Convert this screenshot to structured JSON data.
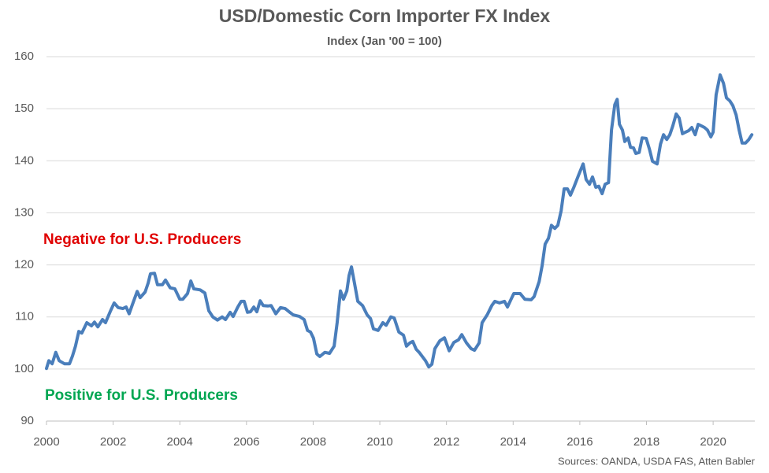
{
  "chart_data": {
    "type": "line",
    "title": "USD/Domestic Corn Importer FX Index",
    "subtitle": "Index (Jan '00 = 100)",
    "annotations": [
      "Negative for U.S. Producers",
      "Positive for U.S. Producers"
    ],
    "source": "Sources: OANDA, USDA FAS, Atten Babler",
    "color": "#4a7ebb",
    "grid": true,
    "xlim": [
      2000,
      2021.25
    ],
    "xticks": [
      2000,
      2002,
      2004,
      2006,
      2008,
      2010,
      2012,
      2014,
      2016,
      2018,
      2020
    ],
    "ylim": [
      90,
      160
    ],
    "yticks": [
      90,
      100,
      110,
      120,
      130,
      140,
      150,
      160
    ],
    "x": [
      2000.0,
      2000.07,
      2000.17,
      2000.28,
      2000.38,
      2000.54,
      2000.69,
      2000.78,
      2000.87,
      2000.97,
      2001.06,
      2001.21,
      2001.35,
      2001.44,
      2001.54,
      2001.68,
      2001.77,
      2001.91,
      2002.03,
      2002.15,
      2002.29,
      2002.39,
      2002.48,
      2002.58,
      2002.72,
      2002.81,
      2002.96,
      2003.05,
      2003.12,
      2003.24,
      2003.33,
      2003.48,
      2003.57,
      2003.71,
      2003.85,
      2004.0,
      2004.09,
      2004.23,
      2004.33,
      2004.42,
      2004.61,
      2004.75,
      2004.87,
      2004.99,
      2005.13,
      2005.27,
      2005.37,
      2005.51,
      2005.6,
      2005.74,
      2005.84,
      2005.93,
      2006.03,
      2006.12,
      2006.22,
      2006.31,
      2006.41,
      2006.5,
      2006.64,
      2006.74,
      2006.88,
      2007.02,
      2007.16,
      2007.3,
      2007.4,
      2007.59,
      2007.73,
      2007.83,
      2007.92,
      2008.01,
      2008.11,
      2008.2,
      2008.35,
      2008.49,
      2008.63,
      2008.72,
      2008.82,
      2008.91,
      2009.01,
      2009.08,
      2009.15,
      2009.24,
      2009.34,
      2009.48,
      2009.62,
      2009.72,
      2009.81,
      2009.95,
      2010.09,
      2010.19,
      2010.33,
      2010.43,
      2010.57,
      2010.71,
      2010.8,
      2010.9,
      2010.99,
      2011.09,
      2011.18,
      2011.37,
      2011.47,
      2011.56,
      2011.65,
      2011.8,
      2011.94,
      2012.08,
      2012.22,
      2012.36,
      2012.46,
      2012.6,
      2012.74,
      2012.84,
      2012.98,
      2013.07,
      2013.22,
      2013.36,
      2013.45,
      2013.59,
      2013.74,
      2013.83,
      2013.93,
      2014.02,
      2014.21,
      2014.35,
      2014.54,
      2014.63,
      2014.78,
      2014.87,
      2014.96,
      2015.06,
      2015.15,
      2015.25,
      2015.34,
      2015.44,
      2015.53,
      2015.63,
      2015.72,
      2015.82,
      2015.96,
      2016.1,
      2016.19,
      2016.29,
      2016.38,
      2016.48,
      2016.57,
      2016.67,
      2016.76,
      2016.86,
      2016.95,
      2017.05,
      2017.12,
      2017.19,
      2017.28,
      2017.35,
      2017.45,
      2017.52,
      2017.61,
      2017.68,
      2017.78,
      2017.87,
      2017.99,
      2018.09,
      2018.18,
      2018.32,
      2018.42,
      2018.51,
      2018.61,
      2018.7,
      2018.79,
      2018.89,
      2018.98,
      2019.08,
      2019.17,
      2019.27,
      2019.36,
      2019.46,
      2019.55,
      2019.65,
      2019.74,
      2019.83,
      2019.93,
      2020.0,
      2020.09,
      2020.21,
      2020.31,
      2020.4,
      2020.5,
      2020.59,
      2020.69,
      2020.78,
      2020.87,
      2020.97,
      2021.06,
      2021.16
    ],
    "values": [
      100.1,
      101.6,
      101.0,
      103.2,
      101.6,
      101.0,
      101.0,
      102.5,
      104.4,
      107.2,
      106.9,
      108.9,
      108.3,
      109.0,
      108.1,
      109.5,
      108.9,
      111.0,
      112.7,
      111.8,
      111.6,
      111.9,
      110.6,
      112.4,
      114.9,
      113.7,
      114.8,
      116.5,
      118.3,
      118.4,
      116.2,
      116.2,
      117.1,
      115.6,
      115.4,
      113.4,
      113.4,
      114.5,
      116.9,
      115.4,
      115.2,
      114.6,
      111.2,
      110.0,
      109.4,
      110.0,
      109.5,
      110.9,
      110.1,
      111.9,
      113.0,
      113.0,
      110.9,
      111.0,
      111.9,
      111.0,
      113.1,
      112.2,
      112.1,
      112.2,
      110.6,
      111.8,
      111.6,
      110.9,
      110.4,
      110.1,
      109.5,
      107.4,
      107.1,
      105.9,
      102.9,
      102.4,
      103.2,
      103.0,
      104.4,
      108.9,
      115.0,
      113.4,
      115.0,
      118.0,
      119.6,
      116.5,
      113.0,
      112.2,
      110.4,
      109.7,
      107.7,
      107.4,
      108.9,
      108.4,
      110.0,
      109.8,
      107.1,
      106.5,
      104.4,
      105.0,
      105.3,
      103.8,
      103.2,
      101.6,
      100.4,
      100.9,
      103.9,
      105.4,
      106.0,
      103.5,
      105.1,
      105.6,
      106.6,
      105.0,
      103.9,
      103.6,
      105.0,
      108.9,
      110.4,
      112.2,
      113.0,
      112.7,
      113.0,
      111.9,
      113.3,
      114.5,
      114.5,
      113.4,
      113.3,
      113.9,
      116.8,
      119.9,
      124.0,
      125.1,
      127.6,
      127.0,
      127.6,
      130.4,
      134.6,
      134.6,
      133.4,
      134.9,
      137.2,
      139.4,
      136.4,
      135.5,
      136.9,
      134.9,
      135.1,
      133.7,
      135.5,
      135.8,
      145.9,
      150.8,
      151.8,
      147.0,
      145.9,
      143.7,
      144.4,
      142.6,
      142.5,
      141.4,
      141.6,
      144.4,
      144.3,
      142.2,
      139.9,
      139.4,
      143.2,
      145.0,
      144.1,
      145.0,
      146.7,
      149.0,
      148.2,
      145.2,
      145.5,
      145.8,
      146.4,
      145.0,
      147.0,
      146.7,
      146.4,
      145.9,
      144.6,
      145.5,
      152.7,
      156.5,
      154.9,
      152.1,
      151.5,
      150.6,
      148.8,
      145.9,
      143.4,
      143.4,
      144.0,
      145.0
    ]
  }
}
